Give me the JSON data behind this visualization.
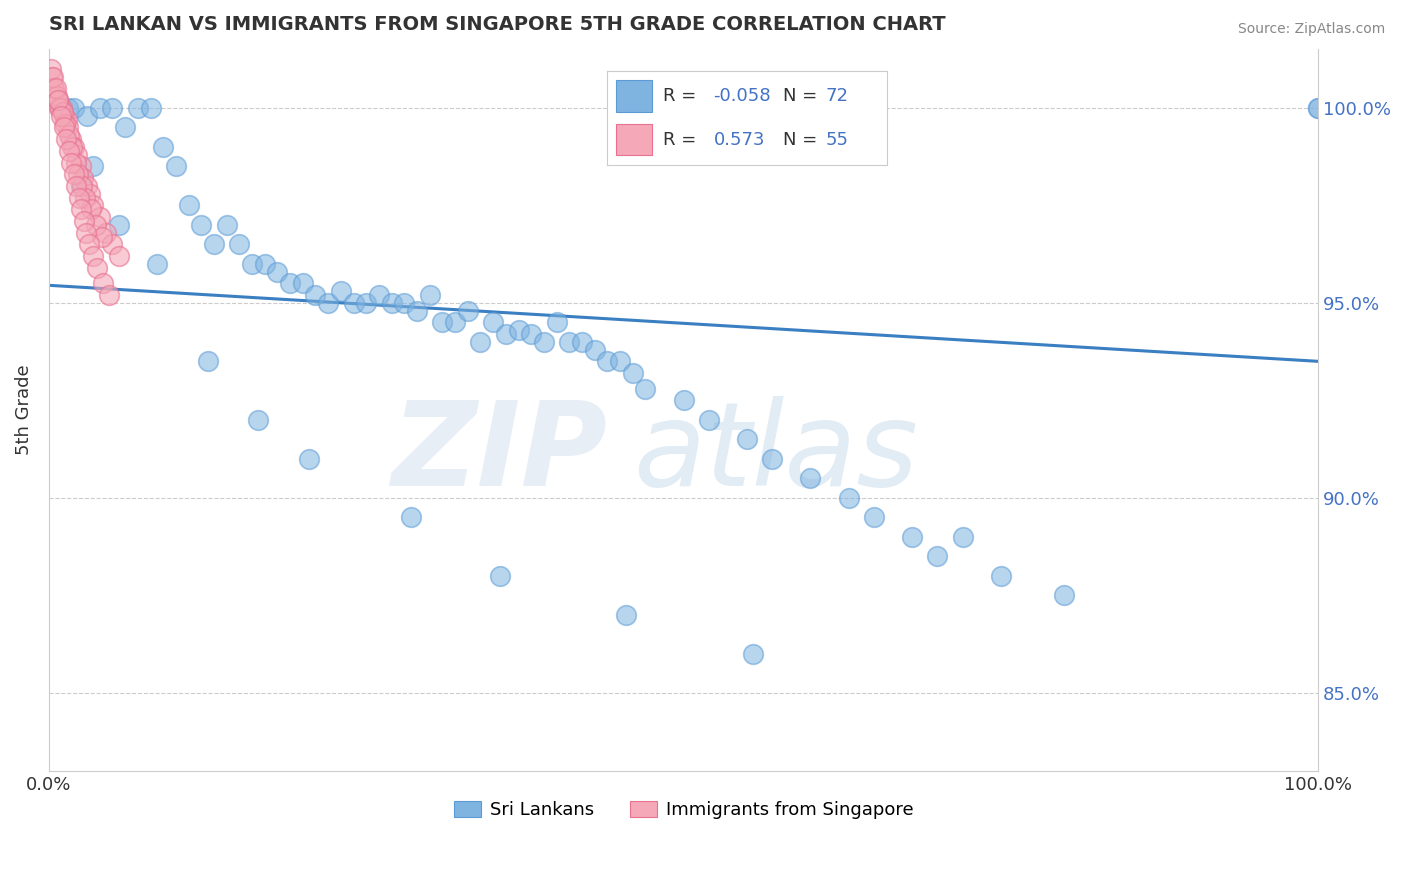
{
  "title": "SRI LANKAN VS IMMIGRANTS FROM SINGAPORE 5TH GRADE CORRELATION CHART",
  "source_text": "Source: ZipAtlas.com",
  "ylabel": "5th Grade",
  "xlim": [
    0.0,
    100.0
  ],
  "ylim": [
    83.0,
    101.5
  ],
  "R_blue": -0.058,
  "N_blue": 72,
  "R_pink": 0.573,
  "N_pink": 55,
  "blue_color": "#7fb3e0",
  "blue_edge_color": "#5b9bd5",
  "pink_color": "#f4a8b8",
  "pink_edge_color": "#e87090",
  "trend_line_color": "#3a7fc1",
  "trend_line_start_x": 0.0,
  "trend_line_start_y": 95.45,
  "trend_line_end_x": 100.0,
  "trend_line_end_y": 93.5,
  "legend_label_blue": "Sri Lankans",
  "legend_label_pink": "Immigrants from Singapore",
  "ytick_color": "#4472c4",
  "yticks": [
    85.0,
    90.0,
    95.0,
    100.0
  ],
  "blue_scatter_x": [
    1.5,
    2.0,
    3.0,
    4.0,
    5.0,
    6.0,
    7.0,
    8.0,
    9.0,
    10.0,
    11.0,
    12.0,
    13.0,
    14.0,
    15.0,
    16.0,
    17.0,
    18.0,
    19.0,
    20.0,
    21.0,
    22.0,
    23.0,
    24.0,
    25.0,
    26.0,
    27.0,
    28.0,
    29.0,
    30.0,
    31.0,
    32.0,
    33.0,
    34.0,
    35.0,
    36.0,
    37.0,
    38.0,
    39.0,
    40.0,
    41.0,
    42.0,
    43.0,
    44.0,
    45.0,
    46.0,
    47.0,
    50.0,
    52.0,
    55.0,
    57.0,
    60.0,
    63.0,
    65.0,
    68.0,
    70.0,
    72.0,
    75.0,
    80.0,
    100.0,
    100.0,
    2.5,
    3.5,
    5.5,
    8.5,
    12.5,
    16.5,
    20.5,
    28.5,
    35.5,
    45.5,
    55.5
  ],
  "blue_scatter_y": [
    100.0,
    100.0,
    99.8,
    100.0,
    100.0,
    99.5,
    100.0,
    100.0,
    99.0,
    98.5,
    97.5,
    97.0,
    96.5,
    97.0,
    96.5,
    96.0,
    96.0,
    95.8,
    95.5,
    95.5,
    95.2,
    95.0,
    95.3,
    95.0,
    95.0,
    95.2,
    95.0,
    95.0,
    94.8,
    95.2,
    94.5,
    94.5,
    94.8,
    94.0,
    94.5,
    94.2,
    94.3,
    94.2,
    94.0,
    94.5,
    94.0,
    94.0,
    93.8,
    93.5,
    93.5,
    93.2,
    92.8,
    92.5,
    92.0,
    91.5,
    91.0,
    90.5,
    90.0,
    89.5,
    89.0,
    88.5,
    89.0,
    88.0,
    87.5,
    100.0,
    100.0,
    98.0,
    98.5,
    97.0,
    96.0,
    93.5,
    92.0,
    91.0,
    89.5,
    88.0,
    87.0,
    86.0
  ],
  "pink_scatter_x": [
    0.3,
    0.5,
    0.7,
    0.8,
    1.0,
    1.2,
    1.4,
    1.5,
    1.7,
    2.0,
    2.2,
    2.5,
    2.7,
    3.0,
    3.2,
    3.5,
    4.0,
    4.5,
    5.0,
    5.5,
    0.2,
    0.4,
    0.6,
    0.9,
    1.1,
    1.3,
    1.6,
    1.8,
    2.1,
    2.3,
    2.6,
    2.8,
    3.3,
    3.7,
    4.2,
    0.15,
    0.35,
    0.55,
    0.75,
    0.95,
    1.15,
    1.35,
    1.55,
    1.75,
    1.95,
    2.15,
    2.35,
    2.55,
    2.75,
    2.95,
    3.15,
    3.45,
    3.75,
    4.25,
    4.75
  ],
  "pink_scatter_y": [
    100.5,
    100.3,
    100.2,
    100.0,
    100.0,
    99.8,
    99.7,
    99.5,
    99.2,
    99.0,
    98.8,
    98.5,
    98.2,
    98.0,
    97.8,
    97.5,
    97.2,
    96.8,
    96.5,
    96.2,
    100.8,
    100.5,
    100.3,
    100.0,
    99.9,
    99.6,
    99.3,
    99.0,
    98.6,
    98.3,
    98.0,
    97.7,
    97.4,
    97.0,
    96.7,
    101.0,
    100.8,
    100.5,
    100.2,
    99.8,
    99.5,
    99.2,
    98.9,
    98.6,
    98.3,
    98.0,
    97.7,
    97.4,
    97.1,
    96.8,
    96.5,
    96.2,
    95.9,
    95.5,
    95.2
  ]
}
